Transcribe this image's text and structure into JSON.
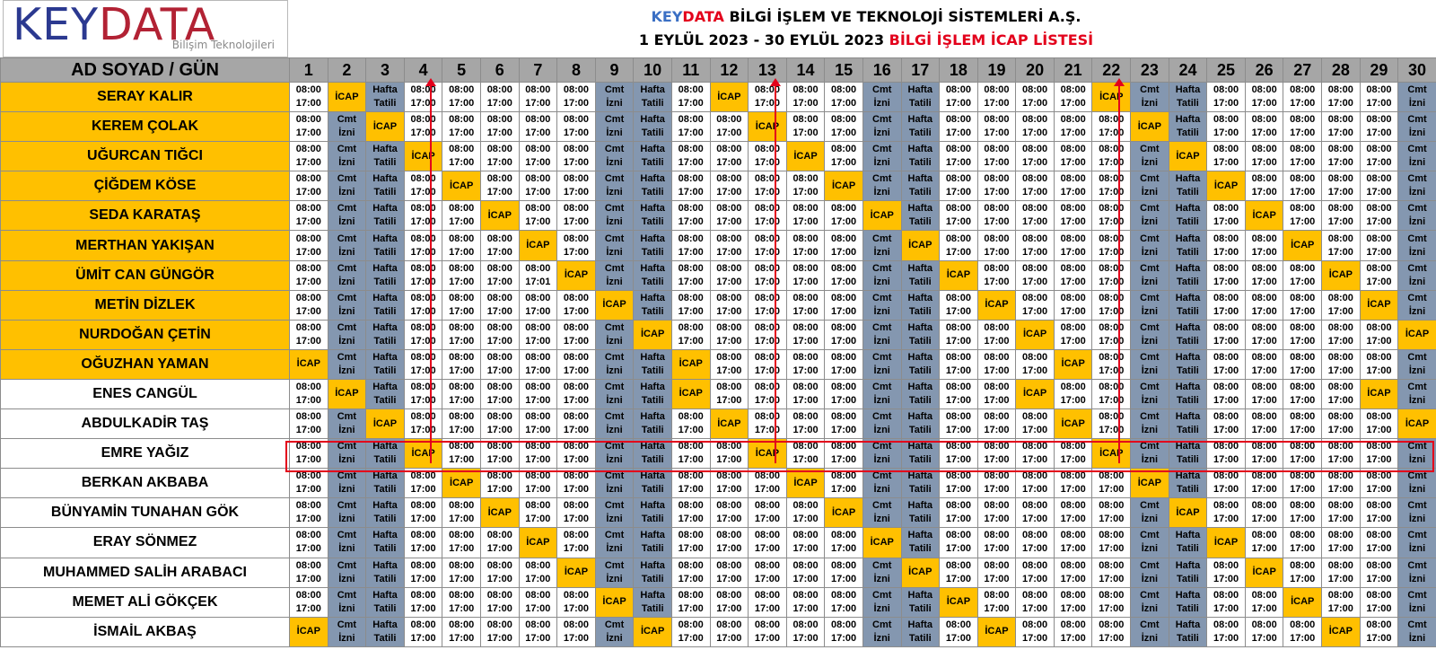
{
  "logo": {
    "main_left": "KEY",
    "main_right": "DATA",
    "subtitle": "Bilişim Teknolojileri"
  },
  "header": {
    "company_prefix": "KEY",
    "company_highlight": "DATA",
    "company_rest": " BİLGİ İŞLEM VE TEKNOLOJİ SİSTEMLERİ A.Ş.",
    "period": "1 EYLÜL 2023 - 30 EYLÜL  2023 ",
    "list_title": "BİLGİ İŞLEM İCAP LİSTESİ"
  },
  "table": {
    "name_header": "AD SOYAD / GÜN",
    "days": [
      "1",
      "2",
      "3",
      "4",
      "5",
      "6",
      "7",
      "8",
      "9",
      "10",
      "11",
      "12",
      "13",
      "14",
      "15",
      "16",
      "17",
      "18",
      "19",
      "20",
      "21",
      "22",
      "23",
      "24",
      "25",
      "26",
      "27",
      "28",
      "29",
      "30"
    ],
    "shift_start": "08:00",
    "shift_end": "17:00",
    "shift_end_alt": "17:01",
    "icap_label": "İCAP",
    "saturday_top": "Cmt",
    "saturday_bottom": "İzni",
    "sunday_top": "Hafta",
    "sunday_bottom": "Tatili",
    "rows": [
      {
        "name": "SERAY KALIR",
        "highlight": true,
        "icap": [
          2,
          12,
          22
        ]
      },
      {
        "name": "KEREM ÇOLAK",
        "highlight": true,
        "icap": [
          3,
          13,
          23
        ]
      },
      {
        "name": "UĞURCAN TIĞCI",
        "highlight": true,
        "icap": [
          4,
          14,
          24
        ]
      },
      {
        "name": "ÇİĞDEM KÖSE",
        "highlight": true,
        "icap": [
          5,
          15,
          25
        ]
      },
      {
        "name": "SEDA KARATAŞ",
        "highlight": true,
        "icap": [
          6,
          16,
          26
        ]
      },
      {
        "name": "MERTHAN YAKIŞAN",
        "highlight": true,
        "icap": [
          7,
          17,
          27
        ]
      },
      {
        "name": "ÜMİT CAN GÜNGÖR",
        "highlight": true,
        "icap": [
          8,
          18,
          28
        ],
        "alt_end_days": [
          7
        ]
      },
      {
        "name": "METİN DİZLEK",
        "highlight": true,
        "icap": [
          9,
          19,
          29
        ]
      },
      {
        "name": "NURDOĞAN ÇETİN",
        "highlight": true,
        "icap": [
          10,
          20,
          30
        ]
      },
      {
        "name": "OĞUZHAN YAMAN",
        "highlight": true,
        "icap": [
          1,
          11,
          21
        ]
      },
      {
        "name": "ENES CANGÜL",
        "highlight": false,
        "icap": [
          2,
          11,
          20,
          29
        ]
      },
      {
        "name": "ABDULKADİR TAŞ",
        "highlight": false,
        "icap": [
          3,
          12,
          21,
          30
        ]
      },
      {
        "name": "EMRE YAĞIZ",
        "highlight": false,
        "icap": [
          4,
          13,
          22
        ]
      },
      {
        "name": "BERKAN AKBABA",
        "highlight": false,
        "icap": [
          5,
          14,
          23
        ]
      },
      {
        "name": "BÜNYAMİN TUNAHAN GÖK",
        "highlight": false,
        "icap": [
          6,
          15,
          24
        ]
      },
      {
        "name": "ERAY SÖNMEZ",
        "highlight": false,
        "icap": [
          7,
          16,
          25
        ]
      },
      {
        "name": "MUHAMMED SALİH ARABACI",
        "highlight": false,
        "icap": [
          8,
          17,
          26
        ]
      },
      {
        "name": "MEMET ALİ GÖKÇEK",
        "highlight": false,
        "icap": [
          9,
          18,
          27
        ]
      },
      {
        "name": "İSMAİL AKBAŞ",
        "highlight": false,
        "icap": [
          1,
          10,
          19,
          28
        ]
      }
    ],
    "saturdays": [
      2,
      9,
      16,
      23,
      30
    ],
    "sundays": [
      3,
      10,
      17,
      24
    ]
  },
  "annotations": {
    "highlighted_row": "EMRE YAĞIZ",
    "arrow_days": [
      4,
      13,
      22
    ],
    "color": "#e3001b"
  }
}
